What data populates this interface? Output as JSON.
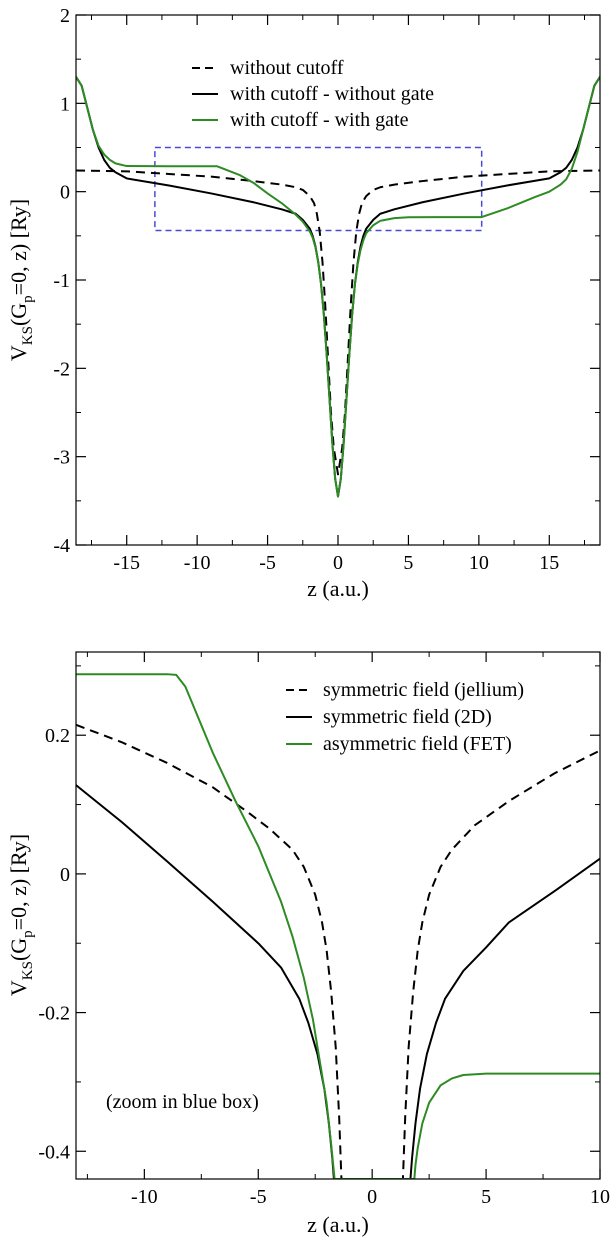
{
  "chart_data": [
    {
      "type": "line",
      "xlabel": "z (a.u.)",
      "ylabel": "V_KS(G_p=0, z) [Ry]",
      "ylabel_parts": {
        "v": "V",
        "sub1": "KS",
        "mid1": "(G",
        "sub2": "p",
        "mid2": "=0, z) [Ry]"
      },
      "xlim": [
        -18.6,
        18.6
      ],
      "ylim": [
        -4,
        2
      ],
      "x_ticks": [
        -15,
        -10,
        -5,
        0,
        5,
        10,
        15
      ],
      "x_tick_labels": [
        "-15",
        "-10",
        "-5",
        "0",
        "5",
        "10",
        "15"
      ],
      "y_ticks": [
        -4,
        -3,
        -2,
        -1,
        0,
        1,
        2
      ],
      "y_tick_labels": [
        "-4",
        "-3",
        "-2",
        "-1",
        "0",
        "1",
        "2"
      ],
      "legend_position": "top-center",
      "colors": {
        "black": "#000000",
        "green": "#2e8b24",
        "blue_box": "#4a4ad8"
      },
      "zoom_box": {
        "x": [
          -13.0,
          10.2
        ],
        "y": [
          -0.44,
          0.5
        ]
      },
      "series": [
        {
          "name": "without cutoff",
          "style": "dashed",
          "color": "#000000",
          "x": [
            -18.6,
            -15,
            -12,
            -9,
            -6,
            -4,
            -3,
            -2.5,
            -2,
            -1.7,
            -1.5,
            -1.3,
            -1.1,
            -0.9,
            -0.7,
            -0.5,
            -0.3,
            0,
            0.3,
            0.5,
            0.7,
            0.9,
            1.1,
            1.3,
            1.5,
            1.7,
            2,
            2.5,
            3,
            4,
            6,
            9,
            12,
            15,
            18.6
          ],
          "y": [
            0.24,
            0.23,
            0.2,
            0.17,
            0.12,
            0.08,
            0.05,
            0.02,
            -0.05,
            -0.13,
            -0.25,
            -0.45,
            -0.8,
            -1.3,
            -1.9,
            -2.5,
            -2.9,
            -3.2,
            -2.9,
            -2.5,
            -1.9,
            -1.3,
            -0.8,
            -0.45,
            -0.25,
            -0.13,
            -0.05,
            0.02,
            0.05,
            0.08,
            0.12,
            0.17,
            0.2,
            0.23,
            0.24
          ]
        },
        {
          "name": "with cutoff - without gate",
          "style": "solid",
          "color": "#000000",
          "x": [
            -18.6,
            -18.2,
            -17.8,
            -17.4,
            -17,
            -16.6,
            -16.2,
            -15.8,
            -15,
            -12,
            -9,
            -6,
            -4,
            -3,
            -2.5,
            -2,
            -1.8,
            -1.6,
            -1.4,
            -1.2,
            -1,
            -0.8,
            -0.6,
            -0.4,
            -0.2,
            0,
            0.2,
            0.4,
            0.6,
            0.8,
            1,
            1.2,
            1.4,
            1.6,
            1.8,
            2,
            2.5,
            3,
            4,
            6,
            9,
            12,
            15,
            15.8,
            16.2,
            16.6,
            17,
            17.4,
            17.8,
            18.2,
            18.6
          ],
          "y": [
            1.3,
            1.2,
            0.95,
            0.7,
            0.5,
            0.36,
            0.27,
            0.22,
            0.15,
            0.07,
            -0.02,
            -0.12,
            -0.2,
            -0.25,
            -0.32,
            -0.42,
            -0.5,
            -0.62,
            -0.8,
            -1.05,
            -1.4,
            -1.85,
            -2.35,
            -2.85,
            -3.25,
            -3.45,
            -3.25,
            -2.85,
            -2.35,
            -1.85,
            -1.4,
            -1.05,
            -0.8,
            -0.62,
            -0.5,
            -0.42,
            -0.32,
            -0.25,
            -0.2,
            -0.12,
            -0.02,
            0.07,
            0.15,
            0.22,
            0.27,
            0.36,
            0.5,
            0.7,
            0.95,
            1.2,
            1.3
          ]
        },
        {
          "name": "with cutoff - with gate",
          "style": "solid",
          "color": "#2e8b24",
          "x": [
            -18.6,
            -18.2,
            -17.8,
            -17.4,
            -17,
            -16.6,
            -16.2,
            -15.8,
            -15,
            -12,
            -10,
            -8.6,
            -7,
            -6,
            -5,
            -4,
            -3,
            -2.5,
            -2,
            -1.8,
            -1.6,
            -1.4,
            -1.2,
            -1,
            -0.8,
            -0.6,
            -0.4,
            -0.2,
            0,
            0.2,
            0.4,
            0.6,
            0.8,
            1,
            1.2,
            1.4,
            1.6,
            1.8,
            2,
            2.5,
            3,
            4,
            5,
            7,
            10.2,
            12,
            14,
            15,
            15.8,
            16.2,
            16.6,
            17,
            17.4,
            17.8,
            18.2,
            18.6
          ],
          "y": [
            1.3,
            1.2,
            0.95,
            0.7,
            0.52,
            0.42,
            0.36,
            0.32,
            0.29,
            0.288,
            0.288,
            0.288,
            0.19,
            0.1,
            -0.02,
            -0.13,
            -0.26,
            -0.34,
            -0.45,
            -0.52,
            -0.63,
            -0.8,
            -1.05,
            -1.4,
            -1.85,
            -2.35,
            -2.85,
            -3.25,
            -3.45,
            -3.25,
            -2.85,
            -2.35,
            -1.85,
            -1.4,
            -1.05,
            -0.82,
            -0.66,
            -0.55,
            -0.47,
            -0.38,
            -0.33,
            -0.3,
            -0.29,
            -0.288,
            -0.288,
            -0.19,
            -0.06,
            0.0,
            0.08,
            0.14,
            0.26,
            0.45,
            0.7,
            0.95,
            1.2,
            1.3
          ]
        }
      ]
    },
    {
      "type": "line",
      "xlabel": "z (a.u.)",
      "ylabel": "V_KS(G_p=0, z) [Ry]",
      "ylabel_parts": {
        "v": "V",
        "sub1": "KS",
        "mid1": "(G",
        "sub2": "p",
        "mid2": "=0, z) [Ry]"
      },
      "xlim": [
        -13.0,
        10.0
      ],
      "ylim": [
        -0.44,
        0.32
      ],
      "x_ticks": [
        -10,
        -5,
        0,
        5,
        10
      ],
      "x_tick_labels": [
        "-10",
        "-5",
        "0",
        "5",
        "10"
      ],
      "y_ticks": [
        -0.4,
        -0.2,
        0,
        0.2
      ],
      "y_tick_labels": [
        "-0.4",
        "-0.2",
        "0",
        "0.2"
      ],
      "legend_position": "top-right",
      "annotation": "(zoom in blue box)",
      "colors": {
        "black": "#000000",
        "green": "#2e8b24"
      },
      "series": [
        {
          "name": "symmetric field (jellium)",
          "style": "dashed",
          "color": "#000000",
          "x": [
            -13,
            -11,
            -9,
            -7,
            -5.5,
            -4.5,
            -3.5,
            -3,
            -2.5,
            -2.2,
            -2,
            -1.8,
            -1.6,
            -1.45,
            -1.35,
            1.35,
            1.45,
            1.6,
            1.8,
            2,
            2.2,
            2.5,
            3,
            3.5,
            4.5,
            6,
            8,
            10
          ],
          "y": [
            0.215,
            0.19,
            0.16,
            0.125,
            0.09,
            0.065,
            0.035,
            0.01,
            -0.03,
            -0.07,
            -0.11,
            -0.17,
            -0.25,
            -0.35,
            -0.44,
            -0.44,
            -0.35,
            -0.25,
            -0.17,
            -0.11,
            -0.07,
            -0.03,
            0.01,
            0.035,
            0.07,
            0.105,
            0.145,
            0.178
          ]
        },
        {
          "name": "symmetric field (2D)",
          "style": "solid",
          "color": "#000000",
          "x": [
            -13,
            -11,
            -9,
            -7,
            -5,
            -4,
            -3.2,
            -2.8,
            -2.4,
            -2.1,
            -1.9,
            -1.75,
            -1.68,
            1.68,
            1.75,
            1.9,
            2.1,
            2.4,
            2.8,
            3.2,
            4,
            5,
            6,
            8,
            10
          ],
          "y": [
            0.128,
            0.075,
            0.018,
            -0.04,
            -0.1,
            -0.135,
            -0.18,
            -0.215,
            -0.26,
            -0.31,
            -0.36,
            -0.41,
            -0.44,
            -0.44,
            -0.41,
            -0.36,
            -0.31,
            -0.26,
            -0.215,
            -0.18,
            -0.14,
            -0.106,
            -0.07,
            -0.025,
            0.022
          ]
        },
        {
          "name": "asymmetric field (FET)",
          "style": "solid",
          "color": "#2e8b24",
          "x": [
            -13,
            -11,
            -9,
            -8.6,
            -8.2,
            -7,
            -6,
            -5,
            -4,
            -3.5,
            -3,
            -2.6,
            -2.3,
            -2,
            -1.8,
            -1.65,
            1.85,
            1.9,
            2,
            2.2,
            2.5,
            3,
            3.5,
            4,
            5,
            6,
            8,
            10
          ],
          "y": [
            0.288,
            0.288,
            0.288,
            0.287,
            0.27,
            0.175,
            0.105,
            0.04,
            -0.04,
            -0.09,
            -0.15,
            -0.21,
            -0.27,
            -0.33,
            -0.39,
            -0.44,
            -0.44,
            -0.42,
            -0.395,
            -0.36,
            -0.33,
            -0.305,
            -0.295,
            -0.29,
            -0.288,
            -0.288,
            -0.288,
            -0.288
          ]
        }
      ]
    }
  ]
}
